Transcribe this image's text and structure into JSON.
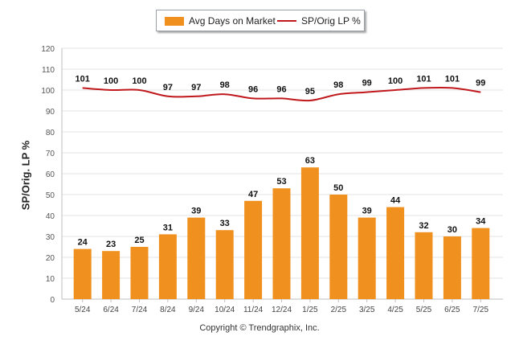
{
  "chart_data": {
    "type": "bar",
    "categories": [
      "5/24",
      "6/24",
      "7/24",
      "8/24",
      "9/24",
      "10/24",
      "11/24",
      "12/24",
      "1/25",
      "2/25",
      "3/25",
      "4/25",
      "5/25",
      "6/25",
      "7/25"
    ],
    "series": [
      {
        "name": "Avg Days on Market",
        "type": "bar",
        "color": "#f0901e",
        "values": [
          24,
          23,
          25,
          31,
          39,
          33,
          47,
          53,
          63,
          50,
          39,
          44,
          32,
          30,
          34
        ]
      },
      {
        "name": "SP/Orig LP %",
        "type": "line",
        "color": "#c0181c",
        "values": [
          101,
          100,
          100,
          97,
          97,
          98,
          96,
          96,
          95,
          98,
          99,
          100,
          101,
          101,
          99
        ]
      }
    ],
    "ylabel": "SP/Orig. LP %",
    "xlabel": "",
    "ylim": [
      0,
      120
    ],
    "yticks": [
      0,
      10,
      20,
      30,
      40,
      50,
      60,
      70,
      80,
      90,
      100,
      110,
      120
    ],
    "grid": true,
    "legend_position": "top-center"
  },
  "legend": {
    "bar_label": "Avg Days on Market",
    "line_label": "SP/Orig LP %"
  },
  "footer": {
    "copyright": "Copyright © Trendgraphix, Inc."
  }
}
